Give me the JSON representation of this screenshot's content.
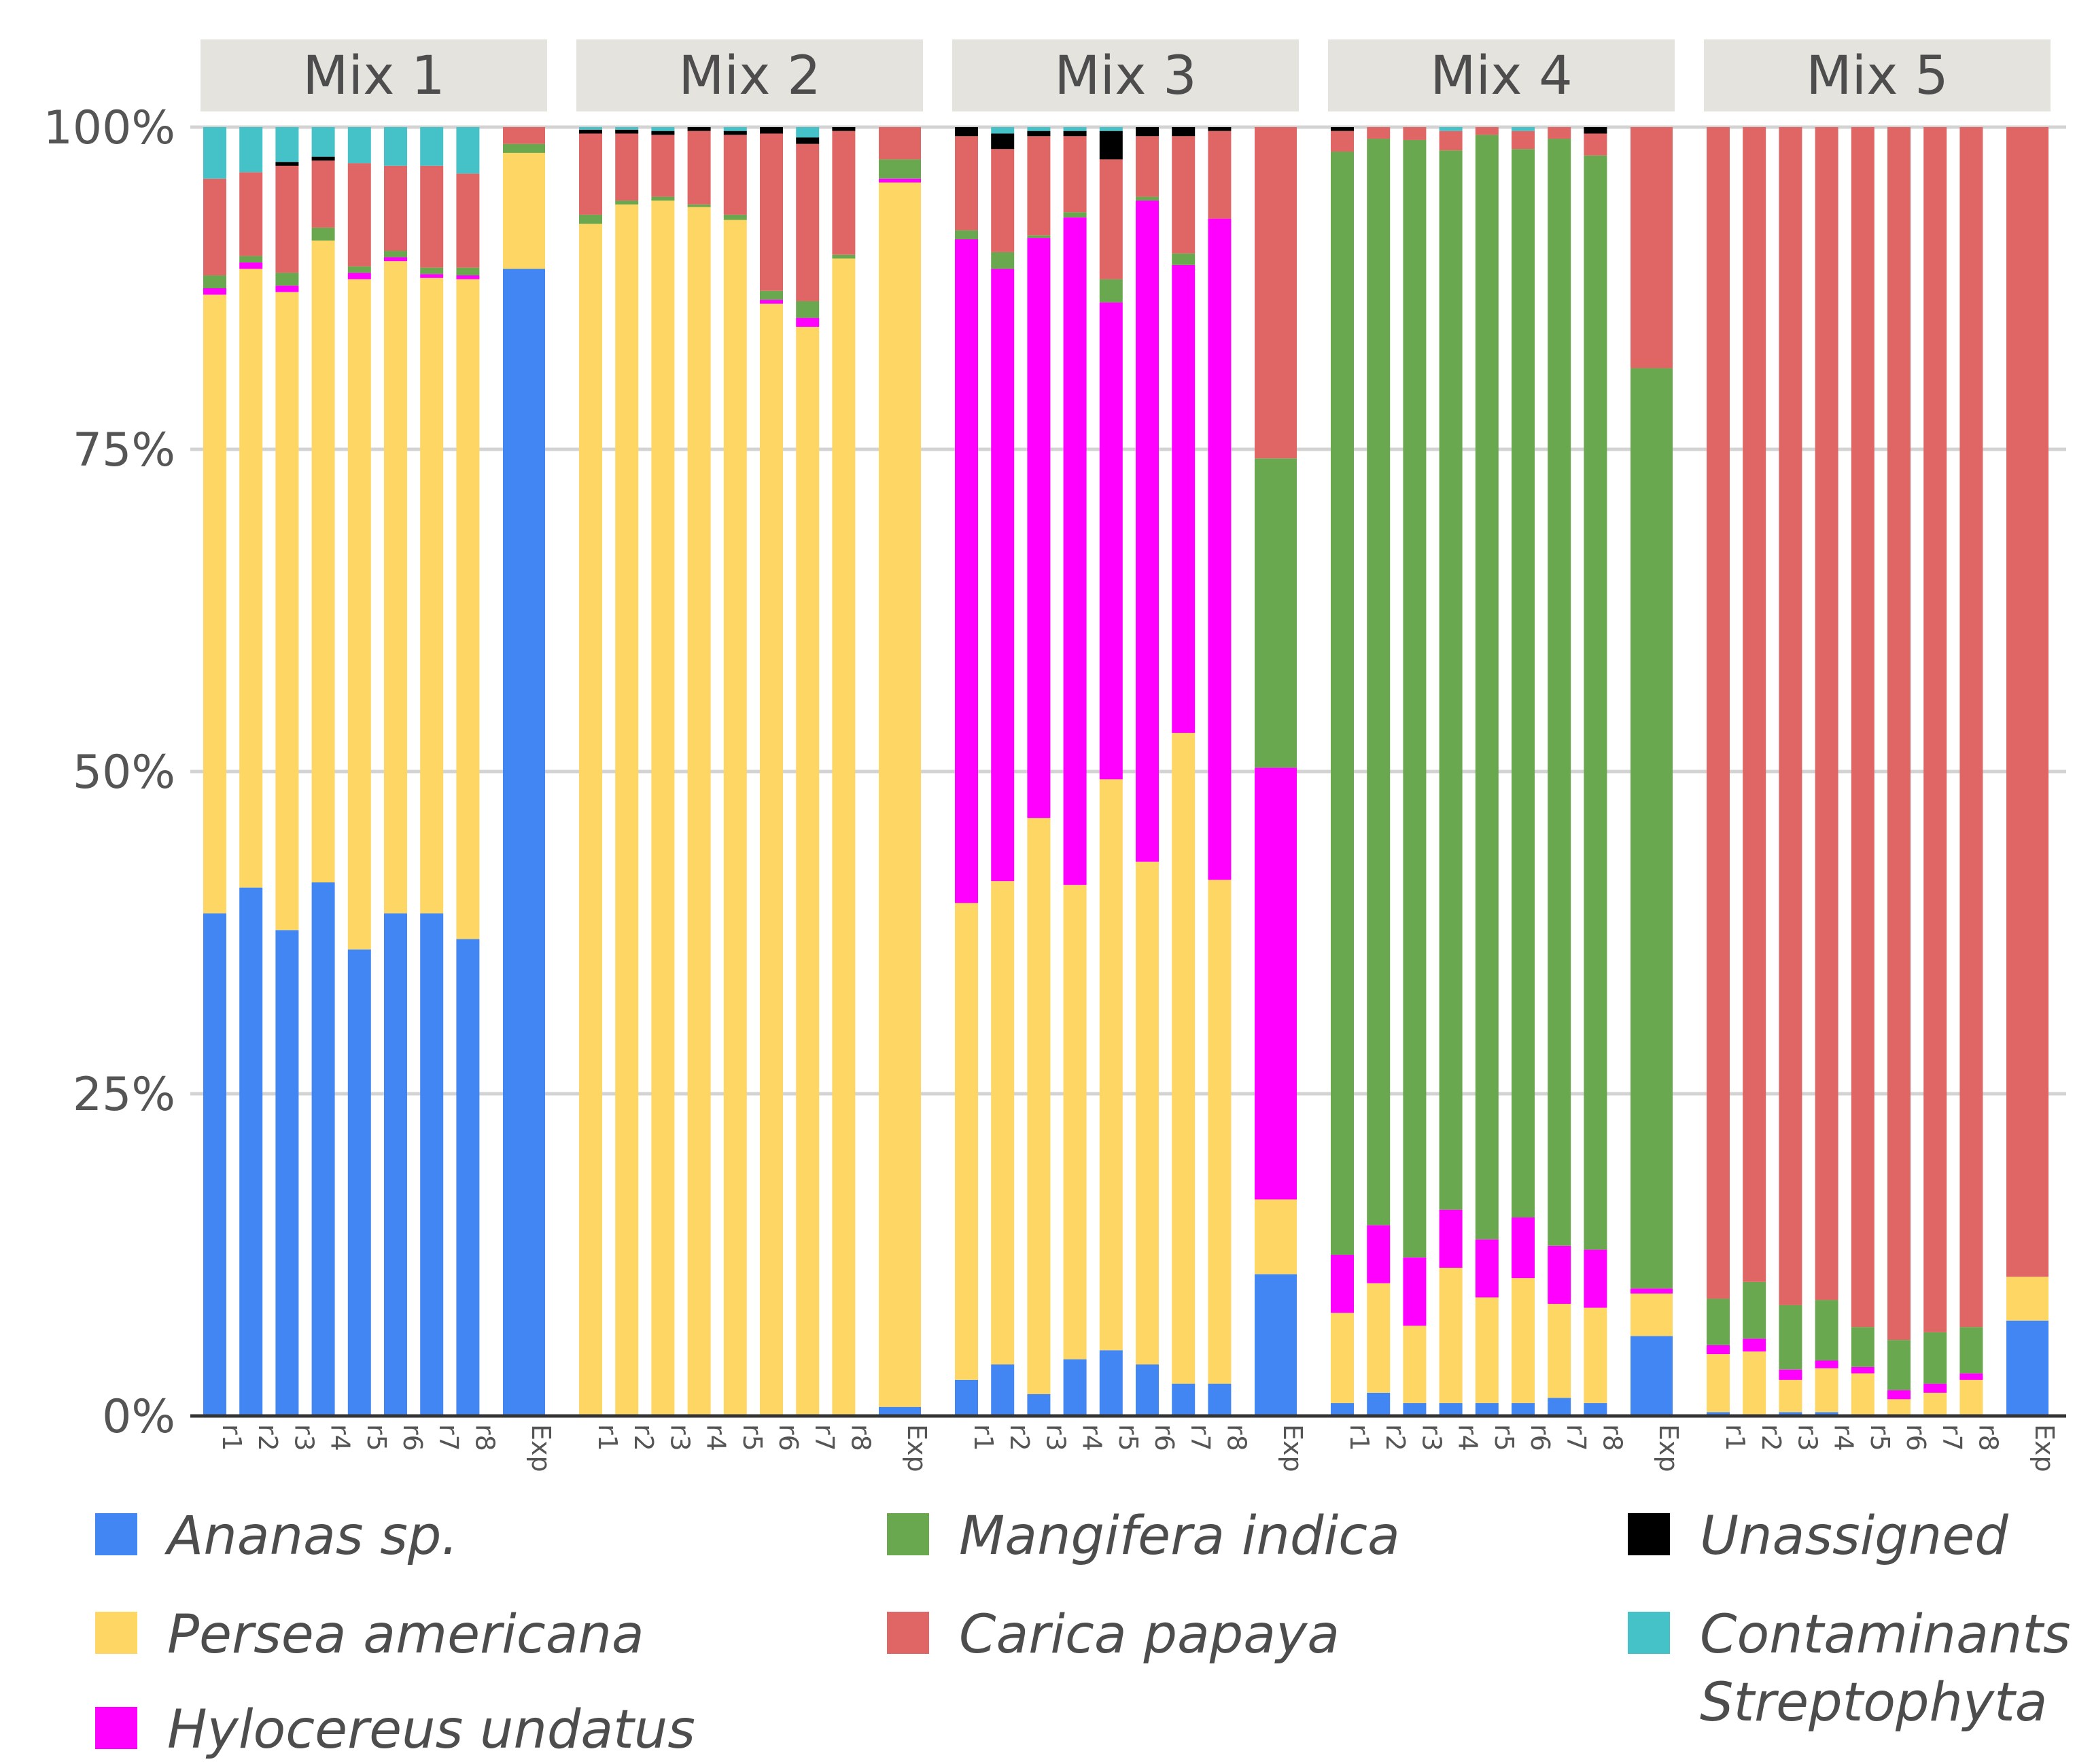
{
  "chart_data": {
    "type": "bar",
    "stacked": true,
    "ylabel": "",
    "xlabel": "",
    "ylim": [
      0,
      100
    ],
    "y_ticks": [
      "0%",
      "25%",
      "50%",
      "75%",
      "100%"
    ],
    "y_tick_values": [
      0,
      25,
      50,
      75,
      100
    ],
    "grid": true,
    "legend_position": "bottom",
    "species": [
      {
        "key": "ananas",
        "name": "Ananas sp.",
        "color": "#4286f4"
      },
      {
        "key": "persea",
        "name": "Persea americana",
        "color": "#fdd663"
      },
      {
        "key": "hylocereus",
        "name": "Hylocereus undatus",
        "color": "#ff00ff"
      },
      {
        "key": "mangifera",
        "name": "Mangifera indica",
        "color": "#6aa84f"
      },
      {
        "key": "carica",
        "name": "Carica papaya",
        "color": "#e06666"
      },
      {
        "key": "unassigned",
        "name": "Unassigned",
        "color": "#000000"
      },
      {
        "key": "contaminants",
        "name": "Contaminants\nStreptophyta",
        "color": "#45c1c8"
      }
    ],
    "facets": [
      {
        "title": "Mix 1",
        "bars": [
          {
            "label": "r1",
            "values": [
              39,
              48,
              0.5,
              1,
              7.5,
              0,
              4
            ]
          },
          {
            "label": "r2",
            "values": [
              41,
              48,
              0.5,
              0.5,
              6.5,
              0,
              3.5
            ]
          },
          {
            "label": "r3",
            "values": [
              37.7,
              49.5,
              0.5,
              1,
              8.3,
              0.3,
              2.7
            ]
          },
          {
            "label": "r4",
            "values": [
              41.4,
              49.8,
              0,
              1,
              5.2,
              0.3,
              2.3
            ]
          },
          {
            "label": "r5",
            "values": [
              36.2,
              52,
              0.5,
              0.5,
              8,
              0,
              2.8
            ]
          },
          {
            "label": "r6",
            "values": [
              39,
              50.6,
              0.3,
              0.5,
              6.6,
              0,
              3
            ]
          },
          {
            "label": "r7",
            "values": [
              39,
              49.3,
              0.3,
              0.5,
              7.9,
              0,
              3
            ]
          },
          {
            "label": "r8",
            "values": [
              37,
              51.2,
              0.3,
              0.6,
              7.3,
              0,
              3.6
            ]
          },
          {
            "label": "Exp",
            "values": [
              89,
              9,
              0,
              0.7,
              1.3,
              0,
              0
            ]
          }
        ]
      },
      {
        "title": "Mix 2",
        "bars": [
          {
            "label": "r1",
            "values": [
              0,
              92.5,
              0,
              0.7,
              6.3,
              0.3,
              0.2
            ]
          },
          {
            "label": "r2",
            "values": [
              0,
              94,
              0,
              0.3,
              5.2,
              0.3,
              0.2
            ]
          },
          {
            "label": "r3",
            "values": [
              0,
              94.3,
              0,
              0.3,
              4.8,
              0.3,
              0.3
            ]
          },
          {
            "label": "r4",
            "values": [
              0,
              93.8,
              0,
              0.2,
              5.7,
              0.3,
              0
            ]
          },
          {
            "label": "r5",
            "values": [
              0,
              92.8,
              0,
              0.4,
              6.2,
              0.3,
              0.3
            ]
          },
          {
            "label": "r6",
            "values": [
              0,
              86.3,
              0.3,
              0.7,
              12.2,
              0.5,
              0
            ]
          },
          {
            "label": "r7",
            "values": [
              0,
              84.5,
              0.7,
              1.3,
              12.2,
              0.5,
              0.8
            ]
          },
          {
            "label": "r8",
            "values": [
              0,
              89.8,
              0,
              0.3,
              9.6,
              0.3,
              0
            ]
          },
          {
            "label": "Exp",
            "values": [
              0.7,
              95,
              0.3,
              1.5,
              2.5,
              0,
              0
            ]
          }
        ]
      },
      {
        "title": "Mix 3",
        "bars": [
          {
            "label": "r1",
            "values": [
              2.8,
              37,
              51.5,
              0.7,
              7.3,
              0.7,
              0
            ]
          },
          {
            "label": "r2",
            "values": [
              4,
              37.5,
              47.5,
              1.3,
              8,
              1.2,
              0.5
            ]
          },
          {
            "label": "r3",
            "values": [
              1.7,
              44.7,
              45,
              0.2,
              7.7,
              0.4,
              0.3
            ]
          },
          {
            "label": "r4",
            "values": [
              4.4,
              36.8,
              51.8,
              0.4,
              5.9,
              0.4,
              0.3
            ]
          },
          {
            "label": "r5",
            "values": [
              5.1,
              44.3,
              37,
              1.8,
              9.3,
              2.2,
              0.3
            ]
          },
          {
            "label": "r6",
            "values": [
              4,
              39,
              51.3,
              0.3,
              4.7,
              0.7,
              0
            ]
          },
          {
            "label": "r7",
            "values": [
              2.5,
              50.5,
              36.3,
              0.9,
              9.1,
              0.7,
              0
            ]
          },
          {
            "label": "r8",
            "values": [
              2.5,
              39.1,
              51.3,
              0,
              6.8,
              0.3,
              0
            ]
          },
          {
            "label": "Exp",
            "values": [
              11,
              5.8,
              33.5,
              24,
              25.7,
              0,
              0
            ]
          }
        ]
      },
      {
        "title": "Mix 4",
        "bars": [
          {
            "label": "r1",
            "values": [
              1,
              7,
              4.5,
              85.6,
              1.6,
              0.3,
              0
            ]
          },
          {
            "label": "r2",
            "values": [
              1.8,
              8.5,
              4.5,
              84.3,
              0.9,
              0,
              0
            ]
          },
          {
            "label": "r3",
            "values": [
              1,
              6,
              5.3,
              86.7,
              1,
              0,
              0
            ]
          },
          {
            "label": "r4",
            "values": [
              1,
              10.5,
              4.5,
              82.2,
              1.5,
              0,
              0.3
            ]
          },
          {
            "label": "r5",
            "values": [
              1,
              8.2,
              4.5,
              85.7,
              0.6,
              0,
              0
            ]
          },
          {
            "label": "r6",
            "values": [
              1,
              9.7,
              4.7,
              82.9,
              1.4,
              0,
              0.3
            ]
          },
          {
            "label": "r7",
            "values": [
              1.4,
              7.3,
              4.5,
              85.9,
              0.9,
              0,
              0
            ]
          },
          {
            "label": "r8",
            "values": [
              1,
              7.4,
              4.5,
              84.9,
              1.7,
              0.5,
              0
            ]
          },
          {
            "label": "Exp",
            "values": [
              6.2,
              3.3,
              0.4,
              71.4,
              18.7,
              0,
              0
            ]
          }
        ]
      },
      {
        "title": "Mix 5",
        "bars": [
          {
            "label": "r1",
            "values": [
              0.3,
              4.5,
              0.7,
              3.6,
              90.9,
              0,
              0
            ]
          },
          {
            "label": "r2",
            "values": [
              0,
              5,
              1,
              4.4,
              89.6,
              0,
              0
            ]
          },
          {
            "label": "r3",
            "values": [
              0.3,
              2.5,
              0.8,
              5,
              91.4,
              0,
              0
            ]
          },
          {
            "label": "r4",
            "values": [
              0.3,
              3.4,
              0.6,
              4.7,
              91,
              0,
              0
            ]
          },
          {
            "label": "r5",
            "values": [
              0,
              3.3,
              0.5,
              3.1,
              93.1,
              0,
              0
            ]
          },
          {
            "label": "r6",
            "values": [
              0,
              1.3,
              0.7,
              3.9,
              94.1,
              0,
              0
            ]
          },
          {
            "label": "r7",
            "values": [
              0,
              1.8,
              0.7,
              4,
              93.5,
              0,
              0
            ]
          },
          {
            "label": "r8",
            "values": [
              0,
              2.8,
              0.5,
              3.6,
              93.1,
              0,
              0
            ]
          },
          {
            "label": "Exp",
            "values": [
              7.4,
              3.4,
              0,
              0,
              89.2,
              0,
              0
            ]
          }
        ]
      }
    ]
  }
}
